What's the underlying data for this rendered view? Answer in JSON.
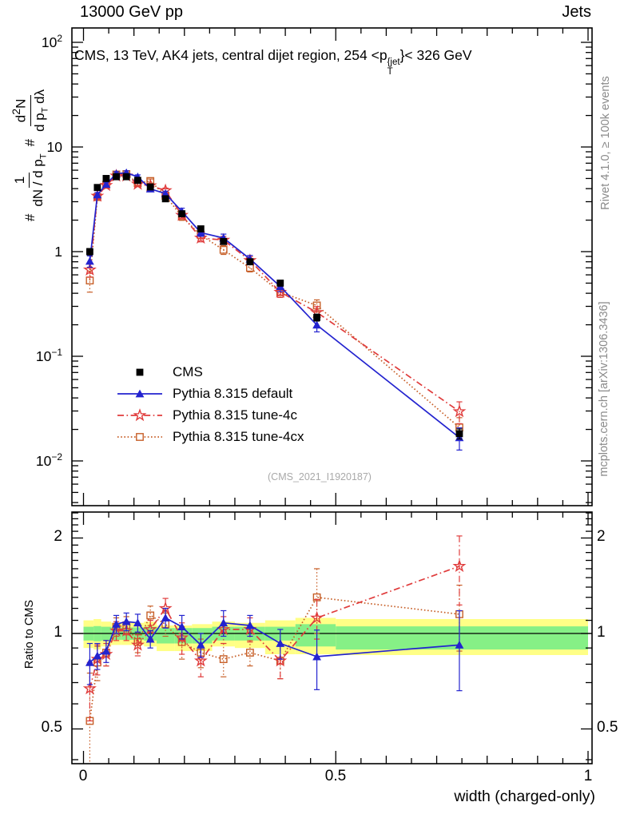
{
  "header": {
    "beam": "13000 GeV pp",
    "category": "Jets"
  },
  "plot_title": {
    "prefix": "CMS, 13 TeV, AK4 jets, central dijet region, 254 <p",
    "sup": "{jet",
    "sub": "T",
    "suffix": "}< 326 GeV"
  },
  "watermark": "(CMS_2021_I1920187)",
  "sidebar_right": {
    "top": "Rivet 4.1.0, ≥ 100k events",
    "bottom": "mcplots.cern.ch [arXiv:1306.3436]"
  },
  "axes": {
    "x_label": "width (charged-only)",
    "ratio_y_label": "Ratio to CMS",
    "main_y_label": {
      "hash1": "#",
      "f1_num": "1",
      "f1_den_a": "dN / d p",
      "f1_den_sub": "T",
      "hash2": "#",
      "f2_num_a": "d",
      "f2_num_sup": "2",
      "f2_num_b": "N",
      "f2_den_a": "d p",
      "f2_den_sub": "T",
      "f2_den_b": " dλ"
    },
    "main_y_ticks": [
      {
        "base": "10",
        "exp": "2",
        "value": 100
      },
      {
        "base": "10",
        "exp": "",
        "value": 10
      },
      {
        "base": "1",
        "exp": "",
        "value": 1
      },
      {
        "base": "10",
        "exp": "−1",
        "value": 0.1
      },
      {
        "base": "10",
        "exp": "−2",
        "value": 0.01
      }
    ],
    "ratio_y_ticks": [
      {
        "label": "2",
        "value": 2
      },
      {
        "label": "1",
        "value": 1
      },
      {
        "label": "0.5",
        "value": 0.5
      }
    ],
    "x_ticks": [
      {
        "label": "0",
        "value": 0
      },
      {
        "label": "0.5",
        "value": 0.5
      },
      {
        "label": "1",
        "value": 1
      }
    ]
  },
  "chart_data": {
    "type": "line",
    "title": "CMS, 13 TeV, AK4 jets, central dijet region, 254 < pT(jet) < 326 GeV",
    "xlabel": "width (charged-only)",
    "ylabel": "# 1/(dN/dpT) # d2N/(dpT dlambda)",
    "ratio_label": "Ratio to CMS",
    "x_range": [
      0,
      1
    ],
    "y_scale": "log",
    "y_range_main": [
      0.0037,
      137
    ],
    "ratio_scale": "log",
    "ratio_range": [
      0.389,
      2.414
    ],
    "x_edges": [
      0,
      0.02,
      0.035,
      0.055,
      0.075,
      0.095,
      0.12,
      0.145,
      0.18,
      0.215,
      0.255,
      0.3,
      0.36,
      0.42,
      0.5,
      1.0
    ],
    "x": [
      0.0125,
      0.0275,
      0.045,
      0.065,
      0.085,
      0.1075,
      0.1325,
      0.1625,
      0.195,
      0.2325,
      0.2775,
      0.33,
      0.39,
      0.4625,
      0.745
    ],
    "series": [
      {
        "name": "CMS",
        "role": "data",
        "color": "#000000",
        "marker": "filled-square",
        "line": "none",
        "values": [
          1.0,
          4.1,
          5.0,
          5.2,
          5.2,
          4.8,
          4.15,
          3.2,
          2.3,
          1.65,
          1.25,
          0.8,
          0.5,
          0.235,
          0.0182
        ],
        "errors": [
          0.07,
          0.22,
          0.25,
          0.26,
          0.26,
          0.24,
          0.21,
          0.16,
          0.12,
          0.09,
          0.07,
          0.045,
          0.03,
          0.018,
          0.002
        ]
      },
      {
        "name": "Pythia 8.315 default",
        "role": "mc",
        "color": "#2323cf",
        "marker": "filled-triangle",
        "line": "solid",
        "values": [
          0.81,
          3.49,
          4.4,
          5.56,
          5.67,
          5.18,
          3.98,
          3.58,
          2.42,
          1.52,
          1.35,
          0.85,
          0.465,
          0.199,
          0.0167
        ],
        "errors": [
          0.1,
          0.18,
          0.2,
          0.25,
          0.25,
          0.23,
          0.18,
          0.2,
          0.18,
          0.12,
          0.12,
          0.07,
          0.05,
          0.028,
          0.004
        ],
        "ratio": [
          0.81,
          0.85,
          0.88,
          1.07,
          1.09,
          1.08,
          0.96,
          1.12,
          1.05,
          0.92,
          1.08,
          1.06,
          0.93,
          0.845,
          0.92
        ],
        "ratio_errors": [
          0.12,
          0.08,
          0.07,
          0.07,
          0.07,
          0.07,
          0.06,
          0.08,
          0.09,
          0.08,
          0.1,
          0.08,
          0.1,
          0.18,
          0.26
        ]
      },
      {
        "name": "Pythia 8.315 tune-4c",
        "role": "mc",
        "color": "#e03c3c",
        "marker": "open-star",
        "line": "dashdot",
        "values": [
          0.67,
          3.4,
          4.3,
          5.3,
          5.3,
          4.42,
          4.27,
          3.84,
          2.23,
          1.35,
          1.29,
          0.824,
          0.41,
          0.263,
          0.0297
        ],
        "errors": [
          0.1,
          0.18,
          0.2,
          0.24,
          0.24,
          0.21,
          0.19,
          0.21,
          0.17,
          0.11,
          0.11,
          0.07,
          0.045,
          0.035,
          0.007
        ],
        "ratio": [
          0.67,
          0.83,
          0.86,
          1.02,
          1.02,
          0.92,
          1.03,
          1.2,
          0.97,
          0.82,
          1.03,
          1.03,
          0.82,
          1.12,
          1.63
        ],
        "ratio_errors": [
          0.14,
          0.09,
          0.07,
          0.07,
          0.07,
          0.07,
          0.07,
          0.09,
          0.11,
          0.09,
          0.1,
          0.09,
          0.1,
          0.16,
          0.4
        ]
      },
      {
        "name": "Pythia 8.315 tune-4cx",
        "role": "mc",
        "color": "#c75f28",
        "marker": "open-square",
        "line": "dotted",
        "values": [
          0.53,
          3.32,
          4.35,
          5.46,
          5.51,
          4.51,
          4.73,
          3.42,
          2.16,
          1.44,
          1.04,
          0.7,
          0.41,
          0.306,
          0.0209
        ],
        "errors": [
          0.12,
          0.18,
          0.2,
          0.25,
          0.25,
          0.21,
          0.21,
          0.19,
          0.17,
          0.11,
          0.1,
          0.06,
          0.045,
          0.04,
          0.005
        ],
        "ratio": [
          0.53,
          0.81,
          0.87,
          1.05,
          1.06,
          0.94,
          1.14,
          1.07,
          0.94,
          0.87,
          0.83,
          0.87,
          0.82,
          1.3,
          1.15
        ],
        "ratio_errors": [
          0.22,
          0.1,
          0.08,
          0.07,
          0.07,
          0.07,
          0.08,
          0.09,
          0.11,
          0.09,
          0.1,
          0.08,
          0.1,
          0.3,
          0.27
        ]
      }
    ],
    "bands": {
      "colors": {
        "green": "#86f086",
        "yellow": "#ffff86"
      },
      "segments": [
        {
          "x0": 0.0,
          "x1": 0.02,
          "ylo": 0.9,
          "yhi": 1.1,
          "glo": 0.95,
          "ghi": 1.05
        },
        {
          "x0": 0.02,
          "x1": 0.035,
          "ylo": 0.89,
          "yhi": 1.11,
          "glo": 0.945,
          "ghi": 1.055
        },
        {
          "x0": 0.035,
          "x1": 0.055,
          "ylo": 0.91,
          "yhi": 1.09,
          "glo": 0.95,
          "ghi": 1.05
        },
        {
          "x0": 0.055,
          "x1": 0.075,
          "ylo": 0.92,
          "yhi": 1.08,
          "glo": 0.955,
          "ghi": 1.045
        },
        {
          "x0": 0.075,
          "x1": 0.095,
          "ylo": 0.92,
          "yhi": 1.08,
          "glo": 0.955,
          "ghi": 1.045
        },
        {
          "x0": 0.095,
          "x1": 0.12,
          "ylo": 0.92,
          "yhi": 1.08,
          "glo": 0.955,
          "ghi": 1.045
        },
        {
          "x0": 0.12,
          "x1": 0.145,
          "ylo": 0.91,
          "yhi": 1.09,
          "glo": 0.95,
          "ghi": 1.05
        },
        {
          "x0": 0.145,
          "x1": 0.18,
          "ylo": 0.88,
          "yhi": 1.06,
          "glo": 0.93,
          "ghi": 1.04
        },
        {
          "x0": 0.18,
          "x1": 0.215,
          "ylo": 0.88,
          "yhi": 1.06,
          "glo": 0.93,
          "ghi": 1.04
        },
        {
          "x0": 0.215,
          "x1": 0.255,
          "ylo": 0.88,
          "yhi": 1.07,
          "glo": 0.93,
          "ghi": 1.04
        },
        {
          "x0": 0.255,
          "x1": 0.3,
          "ylo": 0.91,
          "yhi": 1.09,
          "glo": 0.95,
          "ghi": 1.05
        },
        {
          "x0": 0.3,
          "x1": 0.36,
          "ylo": 0.9,
          "yhi": 1.08,
          "glo": 0.95,
          "ghi": 1.05
        },
        {
          "x0": 0.36,
          "x1": 0.42,
          "ylo": 0.86,
          "yhi": 1.1,
          "glo": 0.95,
          "ghi": 1.05
        },
        {
          "x0": 0.42,
          "x1": 0.5,
          "ylo": 0.86,
          "yhi": 1.12,
          "glo": 0.91,
          "ghi": 1.07
        },
        {
          "x0": 0.5,
          "x1": 1.0,
          "ylo": 0.855,
          "yhi": 1.11,
          "glo": 0.89,
          "ghi": 1.053
        }
      ]
    }
  }
}
